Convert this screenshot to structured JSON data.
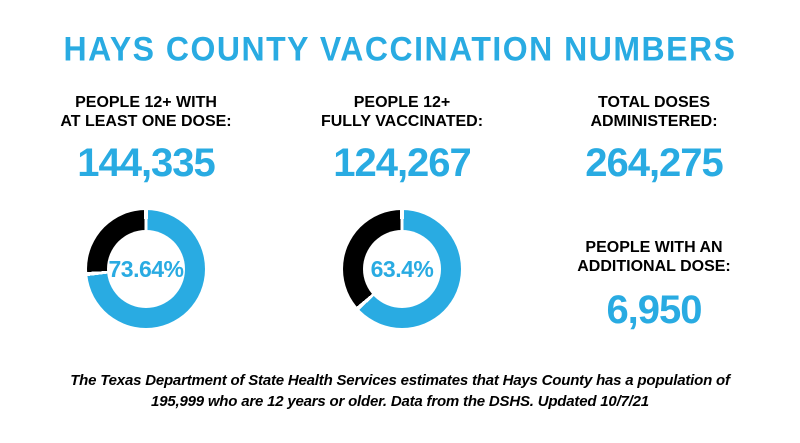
{
  "title": "HAYS COUNTY VACCINATION NUMBERS",
  "colors": {
    "accent": "#29ABE2",
    "ink": "#000000",
    "background": "#FFFFFF"
  },
  "stats": [
    {
      "label": "PEOPLE  12+ WITH\nAT LEAST ONE DOSE:",
      "value": "144,335"
    },
    {
      "label": "PEOPLE 12+\nFULLY VACCINATED:",
      "value": "124,267"
    },
    {
      "label": "TOTAL DOSES\nADMINISTERED:",
      "value": "264,275"
    },
    {
      "label": "PEOPLE WITH AN\nADDITIONAL DOSE:",
      "value": "6,950"
    }
  ],
  "chart_data": [
    {
      "type": "pie",
      "variant": "donut",
      "title": "PEOPLE 12+ WITH AT LEAST ONE DOSE",
      "label": "73.64%",
      "slices": [
        {
          "name": "people 12+ with at least one dose",
          "value": 73.64,
          "color": "#29ABE2"
        },
        {
          "name": "remainder of 12+ population",
          "value": 26.36,
          "color": "#000000"
        }
      ],
      "start_angle_deg": 0,
      "direction": "clockwise",
      "legend": "none"
    },
    {
      "type": "pie",
      "variant": "donut",
      "title": "PEOPLE 12+ FULLY VACCINATED",
      "label": "63.4%",
      "slices": [
        {
          "name": "people 12+ fully vaccinated",
          "value": 63.4,
          "color": "#29ABE2"
        },
        {
          "name": "remainder of 12+ population",
          "value": 36.6,
          "color": "#000000"
        }
      ],
      "start_angle_deg": 0,
      "direction": "clockwise",
      "legend": "none"
    }
  ],
  "footer": "The Texas Department of State Health Services estimates that Hays County has a population of\n195,999 who are 12 years or older. Data from the DSHS. Updated 10/7/21"
}
